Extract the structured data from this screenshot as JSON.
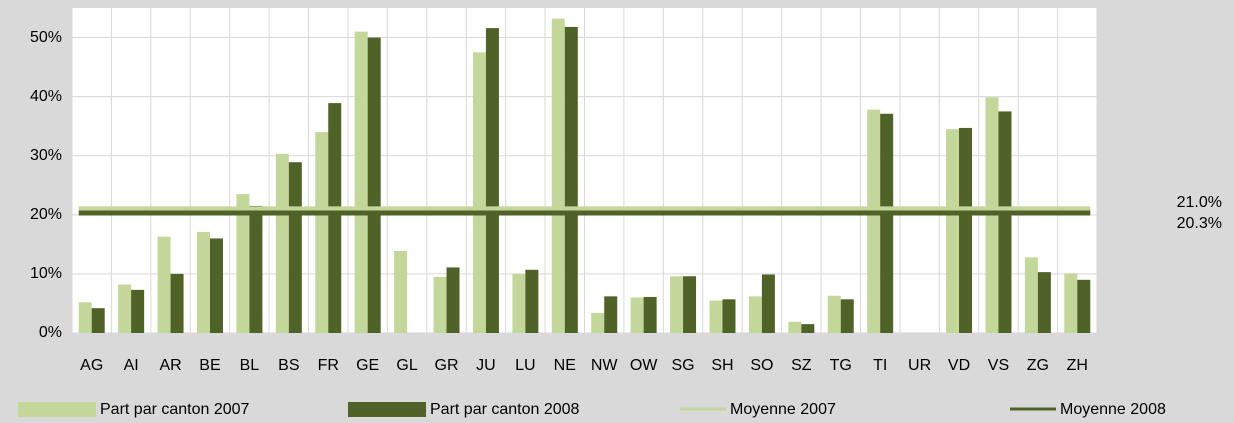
{
  "chart_data": {
    "type": "bar",
    "categories": [
      "AG",
      "AI",
      "AR",
      "BE",
      "BL",
      "BS",
      "FR",
      "GE",
      "GL",
      "GR",
      "JU",
      "LU",
      "NE",
      "NW",
      "OW",
      "SG",
      "SH",
      "SO",
      "SZ",
      "TG",
      "TI",
      "UR",
      "VD",
      "VS",
      "ZG",
      "ZH"
    ],
    "series": [
      {
        "name": "Part par canton 2007",
        "color": "#c4d79b",
        "values": [
          5.2,
          8.2,
          16.3,
          17.1,
          23.5,
          30.3,
          34,
          51,
          13.9,
          9.5,
          47.5,
          10,
          53.2,
          3.4,
          6,
          9.6,
          5.5,
          6.2,
          1.9,
          6.3,
          37.8,
          0,
          34.5,
          39.9,
          12.8,
          10.1
        ]
      },
      {
        "name": "Part par canton 2008",
        "color": "#4f6228",
        "values": [
          4.2,
          7.3,
          10,
          16,
          21.5,
          28.9,
          38.9,
          50,
          0,
          11.1,
          51.6,
          10.7,
          51.8,
          6.2,
          6.1,
          9.6,
          5.7,
          9.9,
          1.5,
          5.7,
          37.1,
          0,
          34.7,
          37.5,
          10.3,
          9
        ]
      }
    ],
    "averages": [
      {
        "name": "Moyenne 2007",
        "color": "#c4d79b",
        "value": 21.0,
        "value_label": "21.0%"
      },
      {
        "name": "Moyenne 2008",
        "color": "#4f6228",
        "value": 20.3,
        "value_label": "20.3%"
      }
    ],
    "ylim": [
      0,
      55
    ],
    "yticks": [
      {
        "value": 0,
        "label": "0%"
      },
      {
        "value": 10,
        "label": "10%"
      },
      {
        "value": 20,
        "label": "20%"
      },
      {
        "value": 30,
        "label": "30%"
      },
      {
        "value": 40,
        "label": "40%"
      },
      {
        "value": 50,
        "label": "50%"
      }
    ],
    "grid": true
  }
}
